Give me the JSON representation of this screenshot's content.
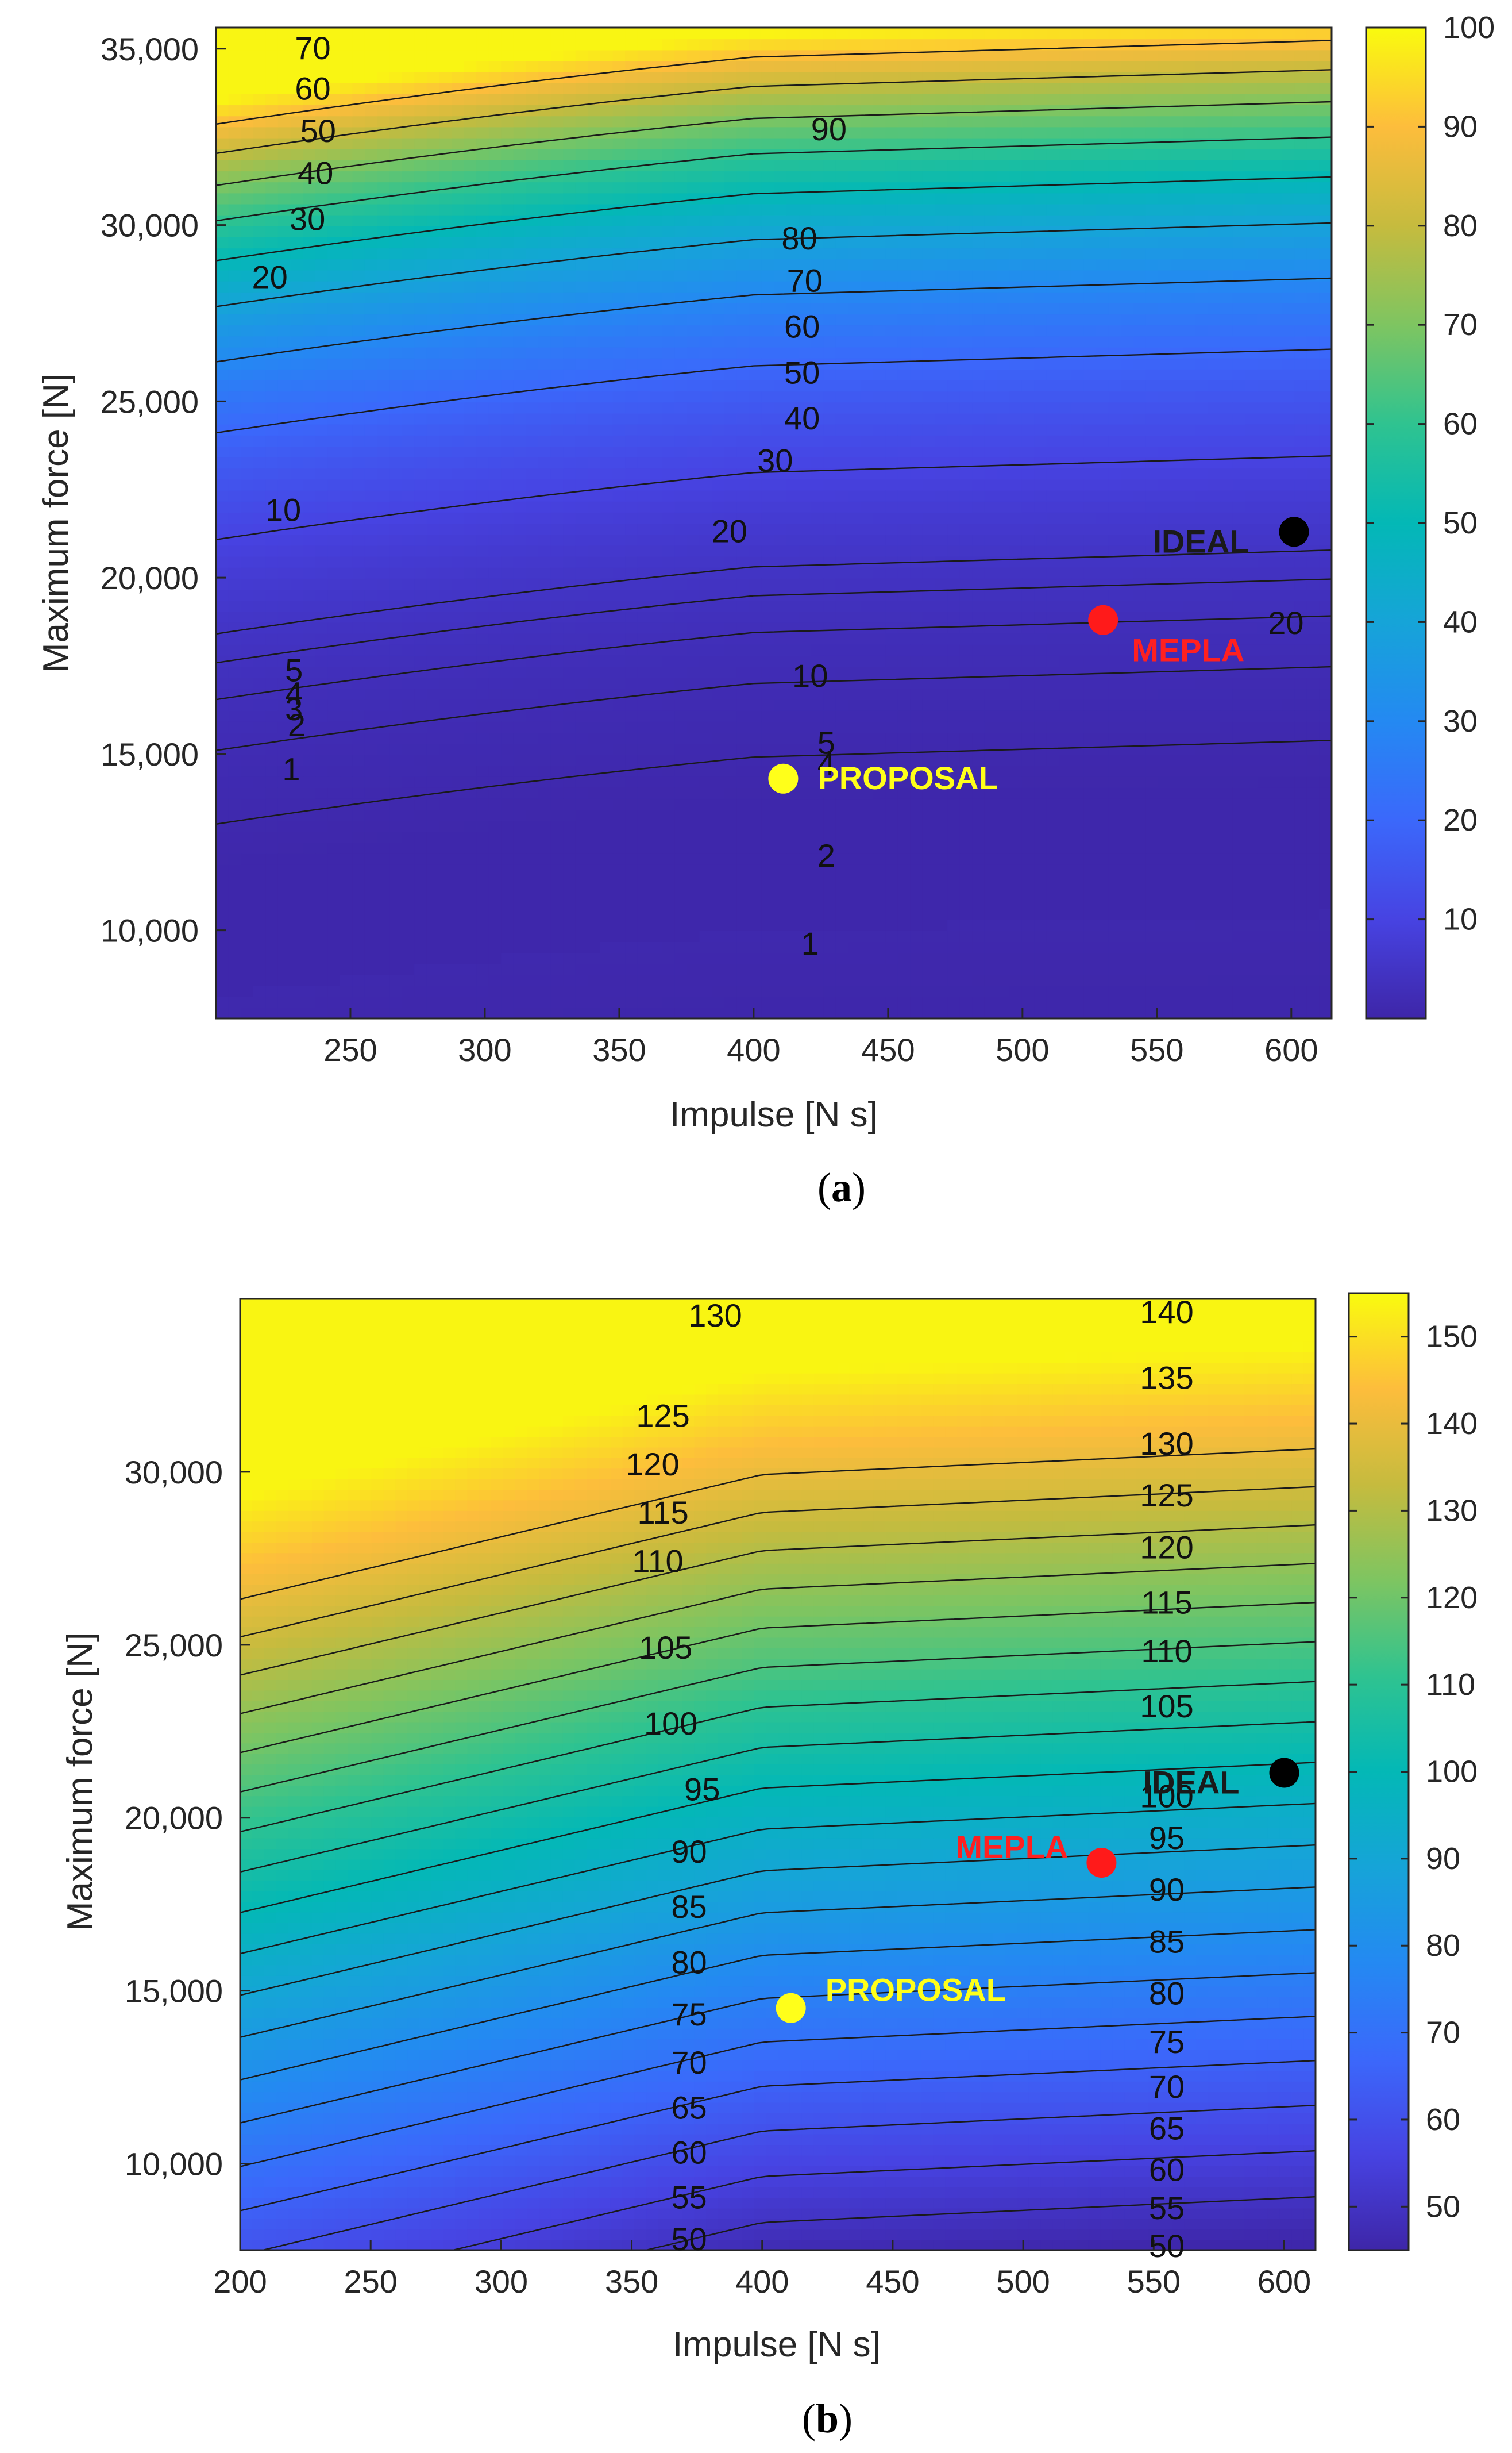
{
  "chart_data": [
    {
      "type": "contour",
      "caption": "a",
      "xlabel": "Impulse [N s]",
      "ylabel": "Maximum force [N]",
      "xlim": [
        200,
        615
      ],
      "ylim": [
        7500,
        35600
      ],
      "xticks": [
        250,
        300,
        350,
        400,
        450,
        500,
        550,
        600
      ],
      "xtick_labels": [
        "250",
        "300",
        "350",
        "400",
        "450",
        "500",
        "550",
        "600"
      ],
      "yticks": [
        10000,
        15000,
        20000,
        25000,
        30000,
        35000
      ],
      "ytick_labels": [
        "10,000",
        "15,000",
        "20,000",
        "25,000",
        "30,000",
        "35,000"
      ],
      "colorbar": {
        "range": [
          0,
          100
        ],
        "ticks": [
          10,
          20,
          30,
          40,
          50,
          60,
          70,
          80,
          90,
          100
        ],
        "labels": [
          "10",
          "20",
          "30",
          "40",
          "50",
          "60",
          "70",
          "80",
          "90",
          "100"
        ]
      },
      "contour_levels": [
        1,
        2,
        3,
        4,
        5,
        10,
        20,
        30,
        40,
        50,
        60,
        70,
        80,
        90
      ],
      "contour_labels": [
        {
          "text": "1",
          "x": 228,
          "y": 14550
        },
        {
          "text": "2",
          "x": 230,
          "y": 15800
        },
        {
          "text": "3",
          "x": 229,
          "y": 16250
        },
        {
          "text": "4",
          "x": 229,
          "y": 16700
        },
        {
          "text": "5",
          "x": 229,
          "y": 17350
        },
        {
          "text": "10",
          "x": 225,
          "y": 21900
        },
        {
          "text": "20",
          "x": 220,
          "y": 28500
        },
        {
          "text": "30",
          "x": 234,
          "y": 30150
        },
        {
          "text": "40",
          "x": 237,
          "y": 31450
        },
        {
          "text": "50",
          "x": 238,
          "y": 32650
        },
        {
          "text": "60",
          "x": 236,
          "y": 33850
        },
        {
          "text": "70",
          "x": 236,
          "y": 35000
        },
        {
          "text": "90",
          "x": 428,
          "y": 32700
        },
        {
          "text": "80",
          "x": 417,
          "y": 29600
        },
        {
          "text": "70",
          "x": 419,
          "y": 28400
        },
        {
          "text": "60",
          "x": 418,
          "y": 27100
        },
        {
          "text": "50",
          "x": 418,
          "y": 25800
        },
        {
          "text": "40",
          "x": 418,
          "y": 24500
        },
        {
          "text": "30",
          "x": 408,
          "y": 23300
        },
        {
          "text": "20",
          "x": 391,
          "y": 21300
        },
        {
          "text": "20",
          "x": 598,
          "y": 18700
        },
        {
          "text": "10",
          "x": 421,
          "y": 17200
        },
        {
          "text": "5",
          "x": 427,
          "y": 15300
        },
        {
          "text": "4",
          "x": 427,
          "y": 14700
        },
        {
          "text": "2",
          "x": 427,
          "y": 12100
        },
        {
          "text": "1",
          "x": 421,
          "y": 9600
        }
      ],
      "points": [
        {
          "name": "IDEAL",
          "x": 601,
          "y": 21300,
          "color": "#000000",
          "label_color": "#1a1a1a"
        },
        {
          "name": "MEPLA",
          "x": 530,
          "y": 18800,
          "color": "#ff1a1a",
          "label_color": "#ff2020"
        },
        {
          "name": "PROPOSAL",
          "x": 411,
          "y": 14300,
          "color": "#ffff1a",
          "label_color": "#ffff1a"
        }
      ]
    },
    {
      "type": "contour",
      "caption": "b",
      "xlabel": "Impulse [N s]",
      "ylabel": "Maximum force [N]",
      "xlim": [
        200,
        612
      ],
      "ylim": [
        7500,
        35000
      ],
      "xticks": [
        200,
        250,
        300,
        350,
        400,
        450,
        500,
        550,
        600
      ],
      "xtick_labels": [
        "200",
        "250",
        "300",
        "350",
        "400",
        "450",
        "500",
        "550",
        "600"
      ],
      "yticks": [
        10000,
        15000,
        20000,
        25000,
        30000
      ],
      "ytick_labels": [
        "10,000",
        "15,000",
        "20,000",
        "25,000",
        "30,000"
      ],
      "colorbar": {
        "range": [
          45,
          155
        ],
        "ticks": [
          50,
          60,
          70,
          80,
          90,
          100,
          110,
          120,
          130,
          140,
          150
        ],
        "labels": [
          "50",
          "60",
          "70",
          "80",
          "90",
          "100",
          "110",
          "120",
          "130",
          "140",
          "150"
        ]
      },
      "contour_levels": [
        50,
        55,
        60,
        65,
        70,
        75,
        80,
        85,
        90,
        95,
        100,
        105,
        110,
        115,
        120,
        125,
        130,
        135,
        140
      ],
      "contour_labels": [
        {
          "text": "50",
          "x": 372,
          "y": 7800
        },
        {
          "text": "55",
          "x": 372,
          "y": 9000
        },
        {
          "text": "60",
          "x": 372,
          "y": 10300
        },
        {
          "text": "65",
          "x": 372,
          "y": 11600
        },
        {
          "text": "70",
          "x": 372,
          "y": 12900
        },
        {
          "text": "75",
          "x": 372,
          "y": 14300
        },
        {
          "text": "80",
          "x": 372,
          "y": 15800
        },
        {
          "text": "85",
          "x": 372,
          "y": 17400
        },
        {
          "text": "90",
          "x": 372,
          "y": 19000
        },
        {
          "text": "95",
          "x": 377,
          "y": 20800
        },
        {
          "text": "100",
          "x": 365,
          "y": 22700
        },
        {
          "text": "105",
          "x": 363,
          "y": 24900
        },
        {
          "text": "110",
          "x": 360,
          "y": 27400
        },
        {
          "text": "115",
          "x": 362,
          "y": 28800
        },
        {
          "text": "120",
          "x": 358,
          "y": 30200
        },
        {
          "text": "125",
          "x": 362,
          "y": 31600
        },
        {
          "text": "130",
          "x": 382,
          "y": 34500
        },
        {
          "text": "140",
          "x": 555,
          "y": 34600
        },
        {
          "text": "135",
          "x": 555,
          "y": 32700
        },
        {
          "text": "130",
          "x": 555,
          "y": 30800
        },
        {
          "text": "125",
          "x": 555,
          "y": 29300
        },
        {
          "text": "120",
          "x": 555,
          "y": 27800
        },
        {
          "text": "115",
          "x": 555,
          "y": 26200
        },
        {
          "text": "110",
          "x": 555,
          "y": 24800
        },
        {
          "text": "105",
          "x": 555,
          "y": 23200
        },
        {
          "text": "100",
          "x": 555,
          "y": 20600
        },
        {
          "text": "95",
          "x": 555,
          "y": 19400
        },
        {
          "text": "90",
          "x": 555,
          "y": 17900
        },
        {
          "text": "85",
          "x": 555,
          "y": 16400
        },
        {
          "text": "80",
          "x": 555,
          "y": 14900
        },
        {
          "text": "75",
          "x": 555,
          "y": 13500
        },
        {
          "text": "70",
          "x": 555,
          "y": 12200
        },
        {
          "text": "65",
          "x": 555,
          "y": 11000
        },
        {
          "text": "60",
          "x": 555,
          "y": 9800
        },
        {
          "text": "55",
          "x": 555,
          "y": 8700
        },
        {
          "text": "50",
          "x": 555,
          "y": 7600
        }
      ],
      "points": [
        {
          "name": "IDEAL",
          "x": 600,
          "y": 21300,
          "color": "#000000",
          "label_color": "#1a1a1a"
        },
        {
          "name": "MEPLA",
          "x": 530,
          "y": 18700,
          "color": "#ff1a1a",
          "label_color": "#ff2020"
        },
        {
          "name": "PROPOSAL",
          "x": 411,
          "y": 14500,
          "color": "#ffff1a",
          "label_color": "#ffff1a"
        }
      ]
    }
  ]
}
